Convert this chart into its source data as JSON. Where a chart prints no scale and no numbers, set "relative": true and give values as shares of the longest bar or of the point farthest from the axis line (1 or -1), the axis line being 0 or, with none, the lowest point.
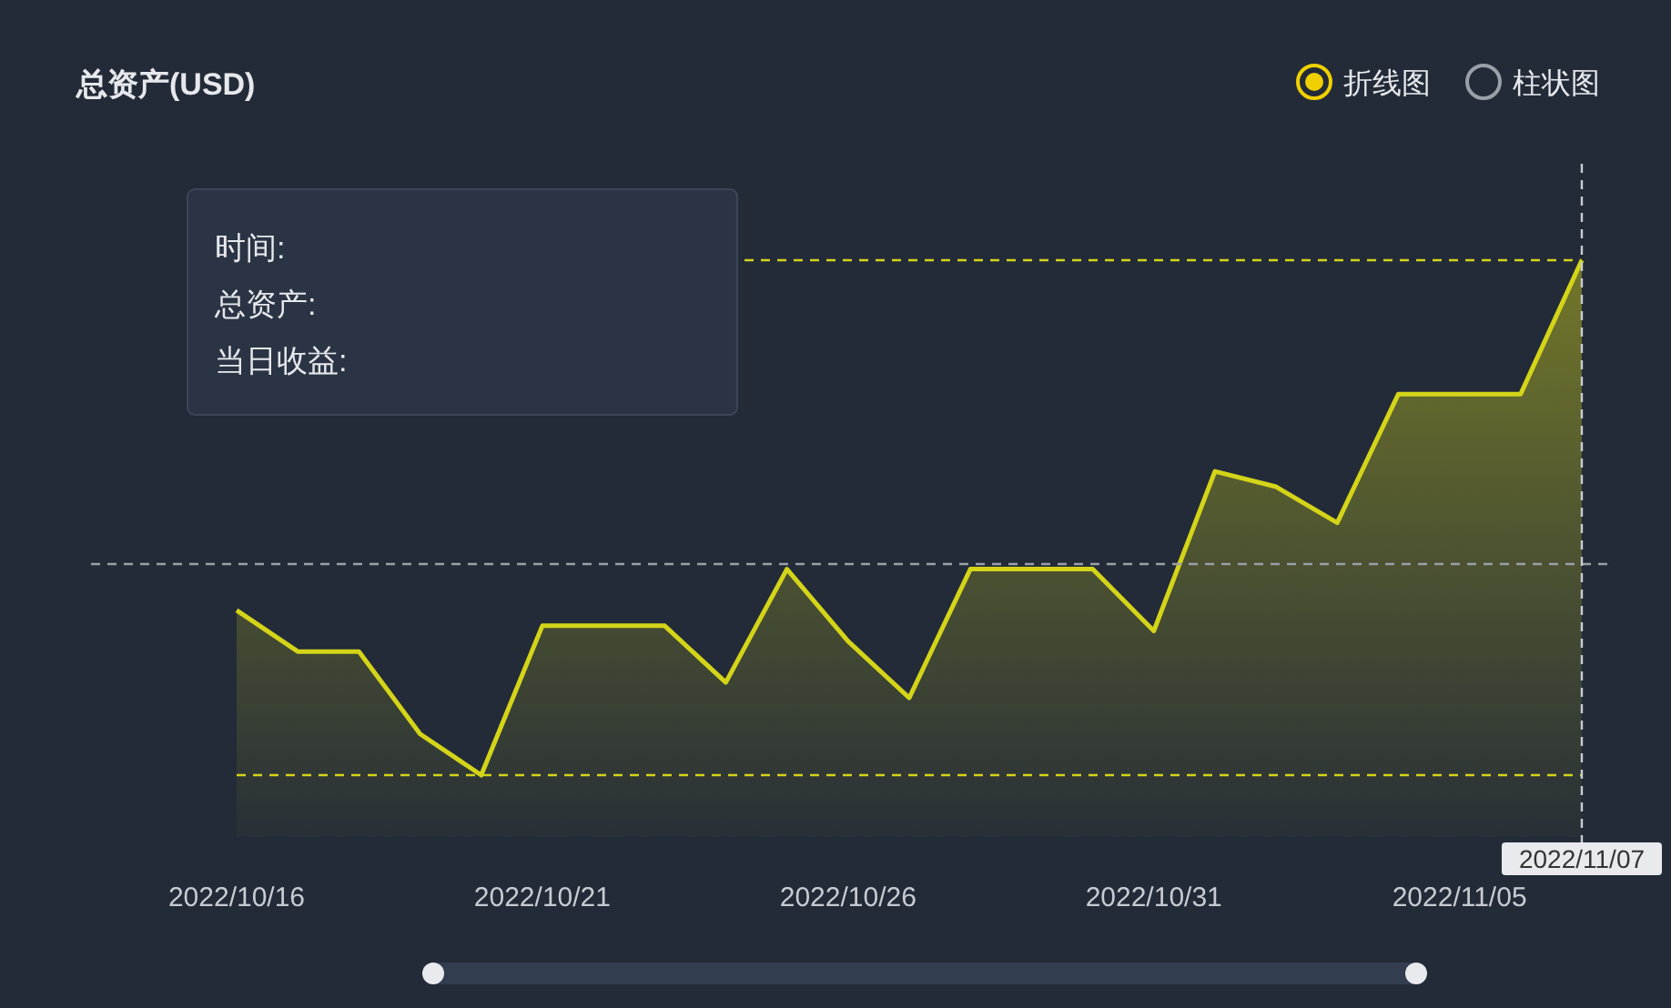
{
  "chart_data": {
    "type": "area",
    "title": "总资产(USD)",
    "relative": true,
    "x": [
      "2022-10-16",
      "2022-10-17",
      "2022-10-18",
      "2022-10-19",
      "2022-10-20",
      "2022-10-21",
      "2022-10-22",
      "2022-10-23",
      "2022-10-24",
      "2022-10-25",
      "2022-10-26",
      "2022-10-27",
      "2022-10-28",
      "2022-10-29",
      "2022-10-30",
      "2022-10-31",
      "2022-11-01",
      "2022-11-02",
      "2022-11-03",
      "2022-11-04",
      "2022-11-05",
      "2022-11-06",
      "2022-11-07"
    ],
    "series": [
      {
        "color": "#d4d419",
        "values": [
          0.32,
          0.24,
          0.24,
          0.08,
          0,
          0.29,
          0.29,
          0.29,
          0.18,
          0.4,
          0.26,
          0.15,
          0.4,
          0.4,
          0.4,
          0.28,
          0.59,
          0.56,
          0.49,
          0.74,
          0.74,
          0.74,
          1
        ]
      }
    ],
    "xlim": [
      "2022-10-16",
      "2022-11-07"
    ],
    "xticks": [
      {
        "value": "2022-10-16",
        "label": "2022/10/16"
      },
      {
        "value": "2022-10-21",
        "label": "2022/10/21"
      },
      {
        "value": "2022-10-26",
        "label": "2022/10/26"
      },
      {
        "value": "2022-10-31",
        "label": "2022/10/31"
      },
      {
        "value": "2022-11-05",
        "label": "2022/11/05"
      }
    ],
    "ref_lines": [
      {
        "axis": "y",
        "value": 1,
        "color": "#d4d419",
        "line_style": "dashed"
      },
      {
        "axis": "y",
        "value": 0,
        "color": "#d4d419",
        "line_style": "dashed"
      },
      {
        "axis": "y",
        "value": 0.41,
        "color": "#9aa0a8",
        "line_style": "dashed"
      },
      {
        "axis": "x",
        "value": "2022-11-07",
        "label": "2022/11/07",
        "color": "#c8ccd2",
        "line_style": "dashed"
      }
    ],
    "annotations": [
      "折线图",
      "柱状图",
      "时间:",
      "总资产:",
      "当日收益:"
    ],
    "marker": "none",
    "line_style": "solid"
  }
}
